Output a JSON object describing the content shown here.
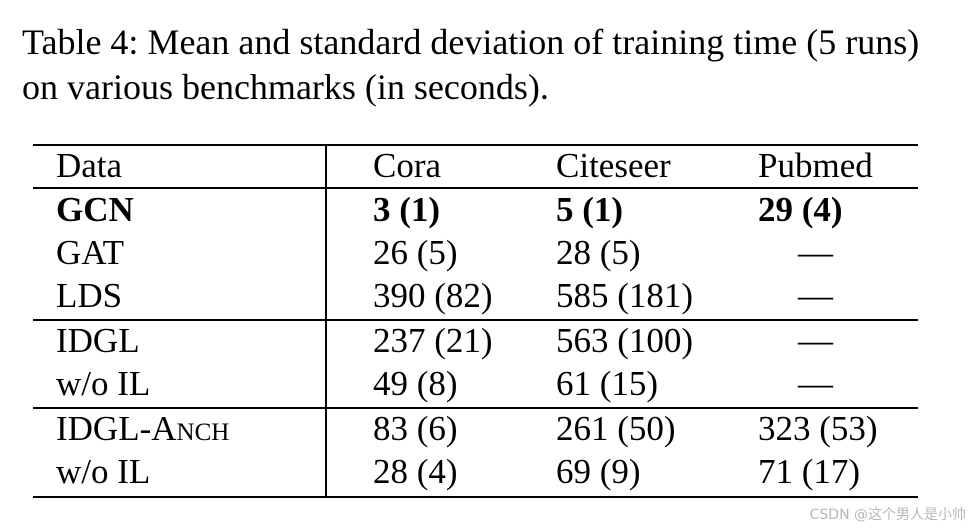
{
  "caption": "Table 4: Mean and standard deviation of training time (5 runs) on various benchmarks (in seconds).",
  "table": {
    "header": [
      "Data",
      "Cora",
      "Citeseer",
      "Pubmed"
    ],
    "rows": [
      [
        "GCN",
        "3 (1)",
        "5 (1)",
        "29 (4)"
      ],
      [
        "GAT",
        "26 (5)",
        "28 (5)",
        "—"
      ],
      [
        "LDS",
        "390 (82)",
        "585 (181)",
        "—"
      ],
      [
        "IDGL",
        "237 (21)",
        "563 (100)",
        "—"
      ],
      [
        "w/o IL",
        "49 (8)",
        "61 (15)",
        "—"
      ],
      [
        "IDGL-Anch",
        "83 (6)",
        "261 (50)",
        "323 (53)"
      ],
      [
        "w/o IL",
        "28 (4)",
        "69 (9)",
        "71 (17)"
      ]
    ]
  },
  "watermark": "CSDN @这个男人是小帅"
}
